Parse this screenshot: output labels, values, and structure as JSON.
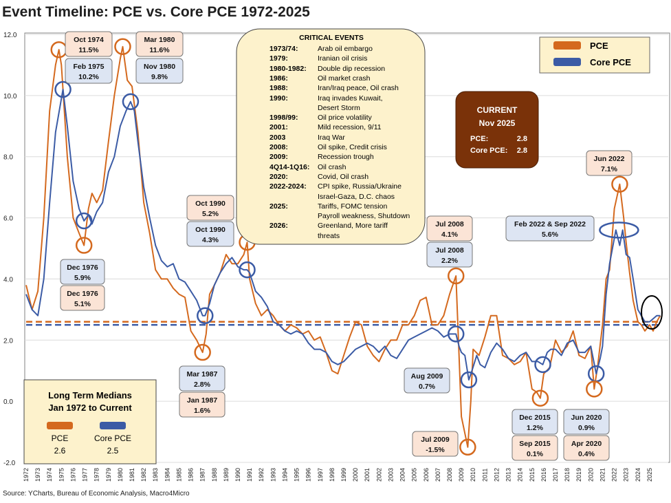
{
  "title": "Event Timeline: PCE vs. Core PCE 1972-2025",
  "source": "Source: YCharts, Bureau of Economic Analysis, Macro4Micro",
  "colors": {
    "pce": "#d4691e",
    "core": "#3b5ba5",
    "plot_bg": "#ffffff",
    "grid": "#dcdcdc",
    "callout_pce": "#fbe4d6",
    "callout_core": "#dde5f3",
    "events_bg": "#fdf2cc",
    "current_bg": "#7a3209"
  },
  "legend": {
    "pce": "PCE",
    "core": "Core PCE"
  },
  "events_box": {
    "title": "CRITICAL EVENTS",
    "items": [
      {
        "year": "1973/74:",
        "text": "Arab oil embargo"
      },
      {
        "year": "1979:",
        "text": "Iranian oil crisis"
      },
      {
        "year": "1980-1982:",
        "text": "Double dip recession"
      },
      {
        "year": "1986:",
        "text": "Oil market crash"
      },
      {
        "year": "1988:",
        "text": "Iran/Iraq peace, Oil crash"
      },
      {
        "year": "1990:",
        "text": "Iraq invades Kuwait,"
      },
      {
        "year": "",
        "text": "Desert Storm"
      },
      {
        "year": "1998/99:",
        "text": "Oil price volatility"
      },
      {
        "year": "2001:",
        "text": "Mild recession, 9/11"
      },
      {
        "year": "2003",
        "text": "Iraq War"
      },
      {
        "year": "2008:",
        "text": "Oil spike, Credit crisis"
      },
      {
        "year": "2009:",
        "text": "Recession trough"
      },
      {
        "year": "4Q14-1Q16:",
        "text": "Oil crash"
      },
      {
        "year": "2020:",
        "text": "Covid, Oil crash"
      },
      {
        "year": "2022-2024:",
        "text": "CPI spike, Russia/Ukraine"
      },
      {
        "year": "",
        "text": "Israel-Gaza, D.C. chaos"
      },
      {
        "year": "2025:",
        "text": "Tariffs, FOMC tension"
      },
      {
        "year": "",
        "text": "Payroll weakness, Shutdown"
      },
      {
        "year": "2026:",
        "text": "Greenland, More tariff"
      },
      {
        "year": "",
        "text": "threats"
      }
    ]
  },
  "current_box": {
    "line1": "CURRENT",
    "line2": "Nov 2025",
    "pce_label": "PCE:",
    "pce_value": "2.8",
    "core_label": "Core PCE:",
    "core_value": "2.8"
  },
  "medians_box": {
    "title1": "Long Term Medians",
    "title2": "Jan 1972 to Current",
    "pce_label": "PCE",
    "pce_value": "2.6",
    "core_label": "Core PCE",
    "core_value": "2.5"
  },
  "callouts": [
    {
      "kind": "pce",
      "line1": "Oct 1974",
      "line2": "11.5%"
    },
    {
      "kind": "core",
      "line1": "Feb 1975",
      "line2": "10.2%"
    },
    {
      "kind": "pce",
      "line1": "Mar 1980",
      "line2": "11.6%"
    },
    {
      "kind": "core",
      "line1": "Nov 1980",
      "line2": "9.8%"
    },
    {
      "kind": "core",
      "line1": "Dec 1976",
      "line2": "5.9%"
    },
    {
      "kind": "pce",
      "line1": "Dec 1976",
      "line2": "5.1%"
    },
    {
      "kind": "pce",
      "line1": "Oct 1990",
      "line2": "5.2%"
    },
    {
      "kind": "core",
      "line1": "Oct 1990",
      "line2": "4.3%"
    },
    {
      "kind": "core",
      "line1": "Mar 1987",
      "line2": "2.8%"
    },
    {
      "kind": "pce",
      "line1": "Jan 1987",
      "line2": "1.6%"
    },
    {
      "kind": "pce",
      "line1": "Jul 2008",
      "line2": "4.1%"
    },
    {
      "kind": "core",
      "line1": "Jul 2008",
      "line2": "2.2%"
    },
    {
      "kind": "core",
      "line1": "Aug 2009",
      "line2": "0.7%"
    },
    {
      "kind": "pce",
      "line1": "Jul 2009",
      "line2": "-1.5%"
    },
    {
      "kind": "core",
      "line1": "Feb 2022 & Sep 2022",
      "line2": "5.6%"
    },
    {
      "kind": "pce",
      "line1": "Jun 2022",
      "line2": "7.1%"
    },
    {
      "kind": "core",
      "line1": "Dec 2015",
      "line2": "1.2%"
    },
    {
      "kind": "pce",
      "line1": "Sep 2015",
      "line2": "0.1%"
    },
    {
      "kind": "core",
      "line1": "Jun 2020",
      "line2": "0.9%"
    },
    {
      "kind": "pce",
      "line1": "Apr 2020",
      "line2": "0.4%"
    }
  ],
  "chart_data": {
    "type": "line",
    "title": "Event Timeline: PCE vs. Core PCE 1972-2025",
    "ylim": [
      -2.0,
      12.0
    ],
    "xlim": [
      1972.0,
      2026.0
    ],
    "y_ticks": [
      "12.0",
      "10.0",
      "8.0",
      "6.0",
      "4.0",
      "2.0",
      "0.0",
      "-2.0"
    ],
    "y_tick_values": [
      12,
      10,
      8,
      6,
      4,
      2,
      0,
      -2
    ],
    "x_ticks": [
      "1972",
      "1973",
      "1974",
      "1975",
      "1976",
      "1977",
      "1978",
      "1979",
      "1980",
      "1981",
      "1982",
      "1983",
      "1984",
      "1985",
      "1986",
      "1987",
      "1988",
      "1989",
      "1990",
      "1991",
      "1992",
      "1993",
      "1994",
      "1995",
      "1996",
      "1997",
      "1998",
      "1999",
      "2000",
      "2001",
      "2002",
      "2003",
      "2004",
      "2005",
      "2006",
      "2007",
      "2008",
      "2009",
      "2010",
      "2011",
      "2012",
      "2013",
      "2014",
      "2015",
      "2016",
      "2017",
      "2018",
      "2019",
      "2020",
      "2021",
      "2022",
      "2023",
      "2024",
      "2025"
    ],
    "grid": "horizontal",
    "legend_position": "top-right",
    "series": [
      {
        "name": "PCE",
        "color": "#d4691e",
        "x": [
          1972.0,
          1972.5,
          1973.0,
          1973.5,
          1974.0,
          1974.5,
          1974.79,
          1975.0,
          1975.5,
          1976.0,
          1976.5,
          1976.92,
          1977.3,
          1977.6,
          1978.0,
          1978.5,
          1979.0,
          1979.5,
          1980.0,
          1980.21,
          1980.6,
          1981.0,
          1981.5,
          1982.0,
          1982.5,
          1983.0,
          1983.5,
          1984.0,
          1984.5,
          1985.0,
          1985.5,
          1986.0,
          1986.5,
          1987.0,
          1987.3,
          1987.6,
          1988.0,
          1988.5,
          1989.0,
          1989.5,
          1990.0,
          1990.5,
          1990.79,
          1991.0,
          1991.5,
          1992.0,
          1992.5,
          1993.0,
          1993.5,
          1994.0,
          1994.5,
          1995.0,
          1995.5,
          1996.0,
          1996.5,
          1997.0,
          1997.5,
          1998.0,
          1998.5,
          1999.0,
          1999.5,
          2000.0,
          2000.5,
          2001.0,
          2001.5,
          2002.0,
          2002.5,
          2003.0,
          2003.5,
          2004.0,
          2004.5,
          2005.0,
          2005.5,
          2006.0,
          2006.5,
          2007.0,
          2007.5,
          2008.0,
          2008.54,
          2008.8,
          2009.0,
          2009.54,
          2009.8,
          2010.0,
          2010.5,
          2011.0,
          2011.5,
          2012.0,
          2012.5,
          2013.0,
          2013.5,
          2014.0,
          2014.5,
          2015.0,
          2015.4,
          2015.71,
          2016.0,
          2016.5,
          2017.0,
          2017.5,
          2018.0,
          2018.5,
          2019.0,
          2019.5,
          2020.0,
          2020.29,
          2020.6,
          2021.0,
          2021.3,
          2021.6,
          2022.0,
          2022.46,
          2022.8,
          2023.0,
          2023.3,
          2023.6,
          2024.0,
          2024.3,
          2024.6,
          2025.0,
          2025.3,
          2025.6,
          2025.9
        ],
        "values": [
          3.8,
          3.0,
          3.6,
          6.0,
          9.5,
          11.0,
          11.5,
          11.0,
          8.0,
          6.0,
          5.5,
          5.1,
          6.3,
          6.8,
          6.5,
          6.9,
          8.5,
          10.0,
          11.2,
          11.6,
          10.5,
          10.3,
          8.8,
          6.5,
          5.5,
          4.3,
          4.0,
          4.0,
          3.7,
          3.5,
          3.4,
          2.3,
          2.0,
          1.6,
          2.2,
          3.5,
          3.8,
          4.2,
          4.8,
          4.5,
          4.5,
          4.8,
          5.2,
          4.0,
          3.2,
          2.8,
          3.0,
          2.8,
          2.5,
          2.3,
          2.5,
          2.4,
          2.2,
          2.3,
          2.0,
          2.1,
          1.6,
          1.0,
          0.9,
          1.5,
          2.1,
          2.6,
          2.5,
          1.8,
          1.5,
          1.3,
          1.7,
          2.0,
          2.0,
          2.5,
          2.5,
          2.8,
          3.3,
          3.4,
          2.5,
          2.5,
          2.8,
          3.5,
          4.1,
          1.5,
          -0.5,
          -1.5,
          0.0,
          1.7,
          1.5,
          2.1,
          2.8,
          2.8,
          1.5,
          1.4,
          1.2,
          1.3,
          1.6,
          0.4,
          0.3,
          0.1,
          0.9,
          1.1,
          2.0,
          1.6,
          1.8,
          2.3,
          1.5,
          1.4,
          1.8,
          0.4,
          1.2,
          2.5,
          4.0,
          4.3,
          6.3,
          7.1,
          6.0,
          5.2,
          4.2,
          3.3,
          2.6,
          2.5,
          2.3,
          2.5,
          2.3,
          2.6,
          2.8
        ]
      },
      {
        "name": "Core PCE",
        "color": "#3b5ba5",
        "x": [
          1972.0,
          1972.5,
          1973.0,
          1973.5,
          1974.0,
          1974.5,
          1975.13,
          1975.5,
          1976.0,
          1976.5,
          1976.92,
          1977.3,
          1977.6,
          1978.0,
          1978.5,
          1979.0,
          1979.5,
          1980.0,
          1980.5,
          1980.88,
          1981.2,
          1981.5,
          1982.0,
          1982.5,
          1983.0,
          1983.5,
          1984.0,
          1984.5,
          1985.0,
          1985.5,
          1986.0,
          1986.5,
          1987.0,
          1987.21,
          1987.6,
          1988.0,
          1988.5,
          1989.0,
          1989.5,
          1990.0,
          1990.5,
          1990.79,
          1991.0,
          1991.5,
          1992.0,
          1992.5,
          1993.0,
          1993.5,
          1994.0,
          1994.5,
          1995.0,
          1995.5,
          1996.0,
          1996.5,
          1997.0,
          1997.5,
          1998.0,
          1998.5,
          1999.0,
          1999.5,
          2000.0,
          2000.5,
          2001.0,
          2001.5,
          2002.0,
          2002.5,
          2003.0,
          2003.5,
          2004.0,
          2004.5,
          2005.0,
          2005.5,
          2006.0,
          2006.5,
          2007.0,
          2007.5,
          2008.0,
          2008.54,
          2008.8,
          2009.0,
          2009.3,
          2009.63,
          2009.9,
          2010.3,
          2010.6,
          2011.0,
          2011.5,
          2012.0,
          2012.5,
          2013.0,
          2013.5,
          2014.0,
          2014.5,
          2015.0,
          2015.5,
          2015.92,
          2016.3,
          2016.6,
          2017.0,
          2017.5,
          2018.0,
          2018.5,
          2019.0,
          2019.5,
          2020.0,
          2020.46,
          2020.8,
          2021.0,
          2021.3,
          2021.6,
          2022.13,
          2022.46,
          2022.71,
          2023.0,
          2023.3,
          2023.6,
          2024.0,
          2024.3,
          2024.6,
          2025.0,
          2025.3,
          2025.6,
          2025.9
        ],
        "values": [
          3.5,
          3.0,
          2.8,
          4.0,
          6.5,
          8.8,
          10.2,
          9.0,
          7.2,
          6.3,
          5.9,
          6.1,
          5.8,
          6.2,
          6.5,
          7.5,
          8.0,
          9.0,
          9.5,
          9.8,
          9.5,
          8.5,
          7.0,
          6.0,
          5.1,
          4.6,
          4.4,
          4.5,
          4.0,
          3.9,
          3.6,
          3.3,
          2.8,
          2.8,
          3.2,
          3.8,
          4.2,
          4.5,
          4.7,
          4.4,
          4.3,
          4.3,
          4.2,
          3.6,
          3.4,
          3.1,
          2.6,
          2.5,
          2.3,
          2.2,
          2.3,
          2.2,
          1.9,
          1.7,
          1.7,
          1.6,
          1.3,
          1.2,
          1.3,
          1.5,
          1.7,
          1.8,
          1.9,
          1.8,
          1.6,
          1.8,
          1.5,
          1.4,
          1.7,
          2.0,
          2.1,
          2.2,
          2.3,
          2.4,
          2.3,
          2.1,
          2.2,
          2.2,
          1.8,
          1.6,
          1.5,
          0.7,
          1.0,
          1.5,
          1.2,
          1.1,
          1.6,
          1.9,
          1.7,
          1.4,
          1.3,
          1.5,
          1.6,
          1.3,
          1.3,
          1.2,
          1.6,
          1.7,
          1.7,
          1.5,
          1.9,
          2.0,
          1.6,
          1.6,
          1.8,
          0.9,
          1.4,
          1.8,
          3.5,
          4.5,
          5.6,
          5.1,
          5.6,
          4.8,
          4.7,
          4.0,
          3.0,
          2.8,
          2.6,
          2.6,
          2.7,
          2.8,
          2.8
        ]
      }
    ],
    "medians": {
      "pce": 2.6,
      "core": 2.5
    }
  }
}
